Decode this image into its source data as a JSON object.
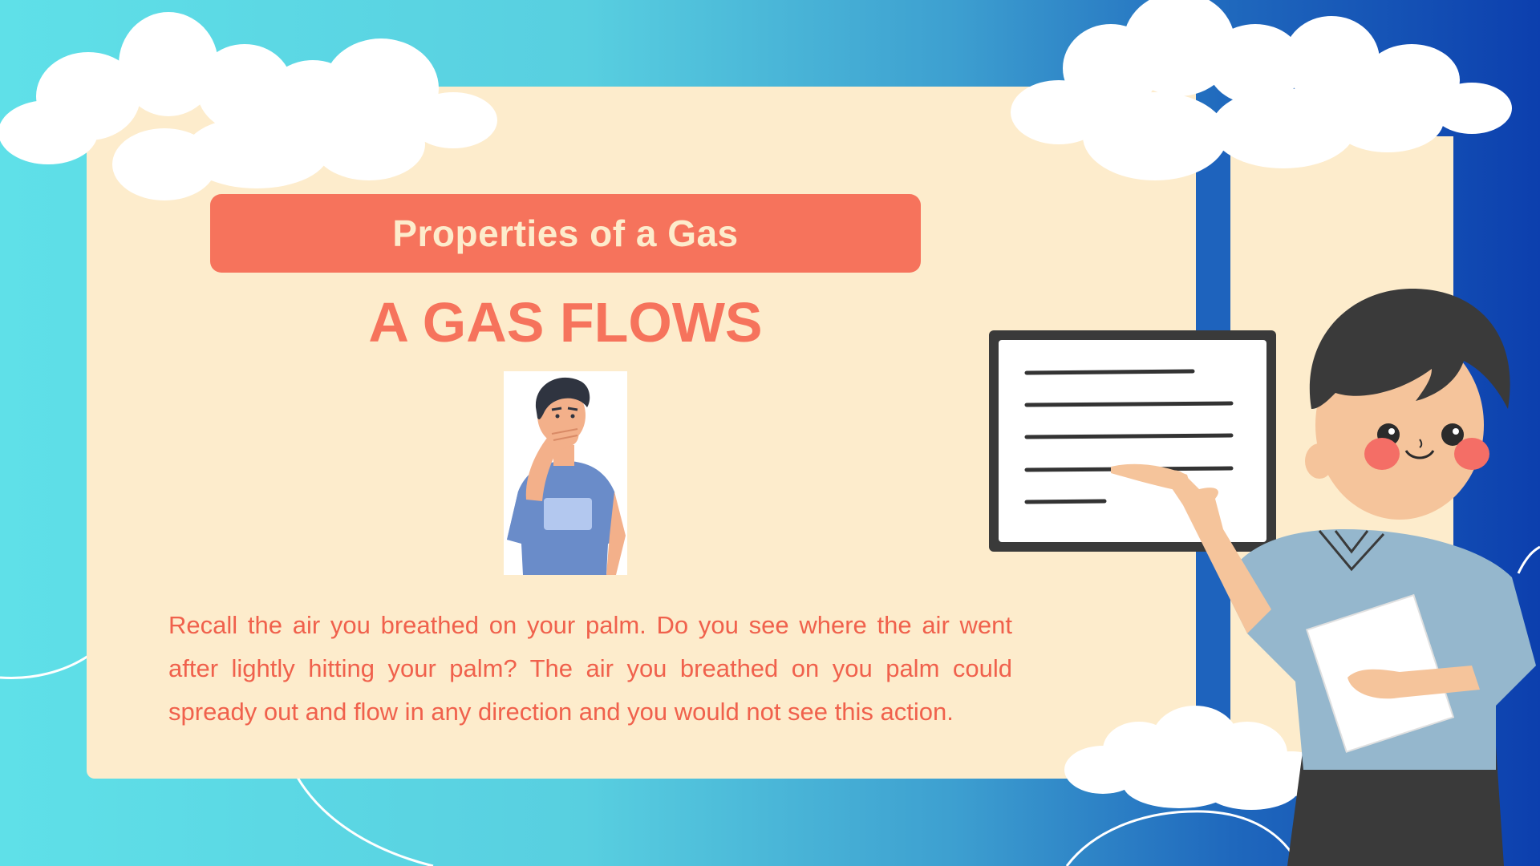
{
  "slide": {
    "title_bar": "Properties of a Gas",
    "heading": "A GAS FLOWS",
    "body": "Recall the air you breathed on your palm. Do you see where the air went after lightly hitting your palm? The air you breathed on you palm could spready out and flow in any direction and you would not see this action."
  },
  "colors": {
    "accent": "#f6735c",
    "card": "#fdeccc",
    "background_light": "#5fe0e8",
    "background_dark": "#0c3fae"
  },
  "icons": {
    "person_illustration": "person-covering-mouth-icon",
    "teacher_illustration": "teacher-pointing-board-icon",
    "cloud": "cloud-icon"
  }
}
